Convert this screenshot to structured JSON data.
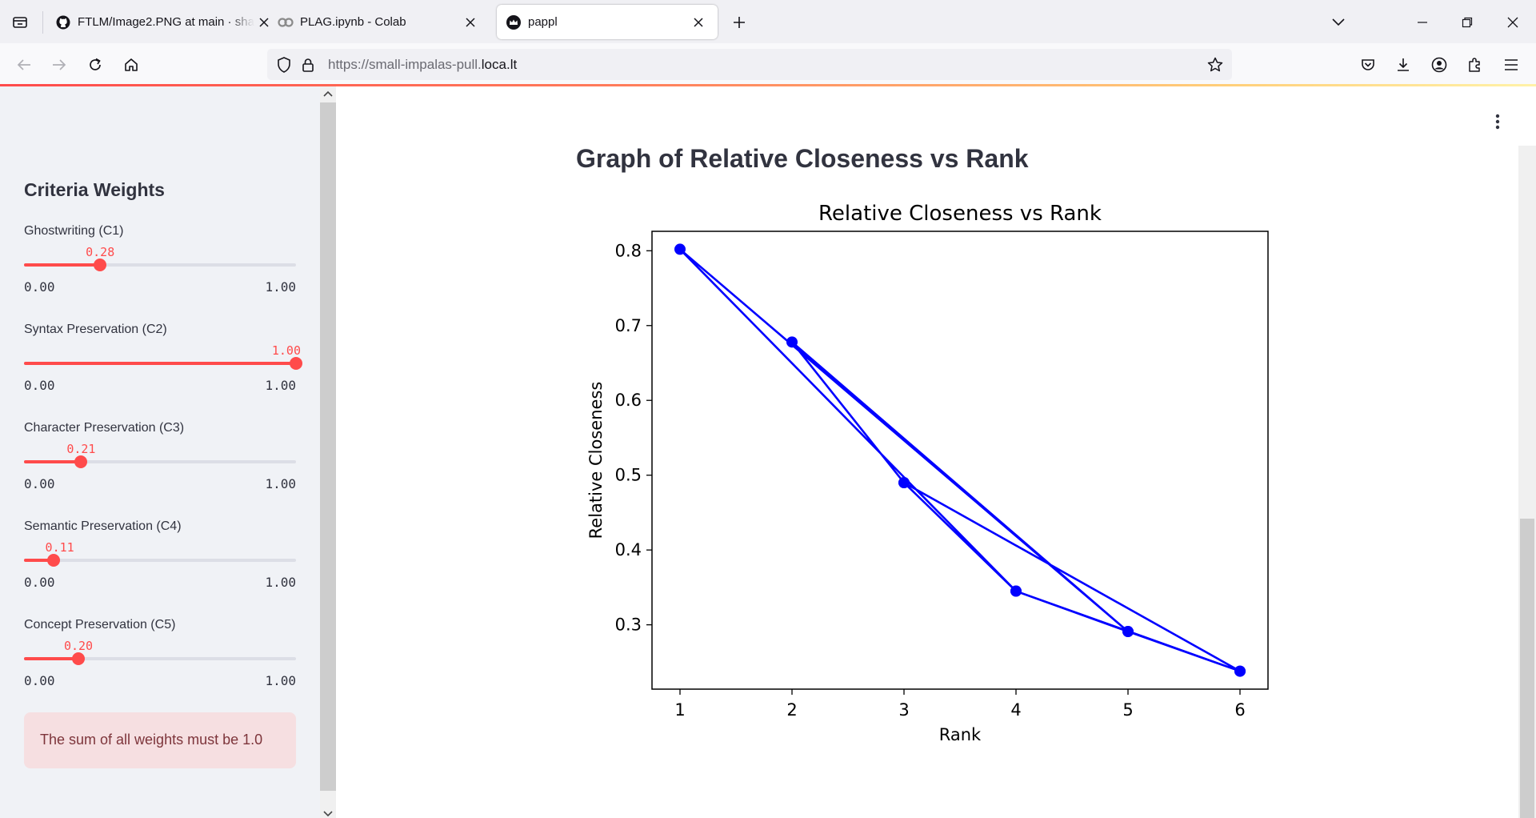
{
  "browser": {
    "tabs": [
      {
        "title": "FTLM/Image2.PNG at main · sha",
        "favicon": "github-icon",
        "active": false
      },
      {
        "title": "PLAG.ipynb - Colab",
        "favicon": "colab-icon",
        "active": false
      },
      {
        "title": "pappl",
        "favicon": "streamlit-crown-icon",
        "active": true
      }
    ],
    "url": {
      "prefix": "https://small-impalas-pull.",
      "domain": "loca.lt"
    }
  },
  "sidebar": {
    "title": "Criteria Weights",
    "sliders": [
      {
        "label": "Ghostwriting (C1)",
        "value": 0.28,
        "value_text": "0.28",
        "min_text": "0.00",
        "max_text": "1.00"
      },
      {
        "label": "Syntax Preservation (C2)",
        "value": 1.0,
        "value_text": "1.00",
        "min_text": "0.00",
        "max_text": "1.00"
      },
      {
        "label": "Character Preservation (C3)",
        "value": 0.21,
        "value_text": "0.21",
        "min_text": "0.00",
        "max_text": "1.00"
      },
      {
        "label": "Semantic Preservation (C4)",
        "value": 0.11,
        "value_text": "0.11",
        "min_text": "0.00",
        "max_text": "1.00"
      },
      {
        "label": "Concept Preservation (C5)",
        "value": 0.2,
        "value_text": "0.20",
        "min_text": "0.00",
        "max_text": "1.00"
      }
    ],
    "alert": "The sum of all weights must be 1.0"
  },
  "main": {
    "heading": "Graph of Relative Closeness vs Rank"
  },
  "colors": {
    "accent": "#ff4b4b",
    "series": "#0000ff",
    "sidebar_bg": "#f0f2f6",
    "alert_bg": "#f6dfe1"
  },
  "chart_data": {
    "type": "line",
    "title": "Relative Closeness vs Rank",
    "xlabel": "Rank",
    "ylabel": "Relative Closeness",
    "x": [
      3,
      6,
      4,
      1,
      5,
      2,
      3,
      4,
      5,
      6
    ],
    "y": [
      0.49,
      0.238,
      0.345,
      0.802,
      0.291,
      0.678,
      0.49,
      0.345,
      0.291,
      0.238
    ],
    "note_order": "points plotted in data order",
    "xticks": [
      1,
      2,
      3,
      4,
      5,
      6
    ],
    "yticks": [
      0.3,
      0.4,
      0.5,
      0.6,
      0.7,
      0.8
    ],
    "ytick_labels": [
      "0.3",
      "0.4",
      "0.5",
      "0.6",
      "0.7",
      "0.8"
    ],
    "xlim": [
      0.75,
      6.25
    ],
    "ylim": [
      0.214,
      0.826
    ],
    "grid": false,
    "marker": "circle"
  }
}
